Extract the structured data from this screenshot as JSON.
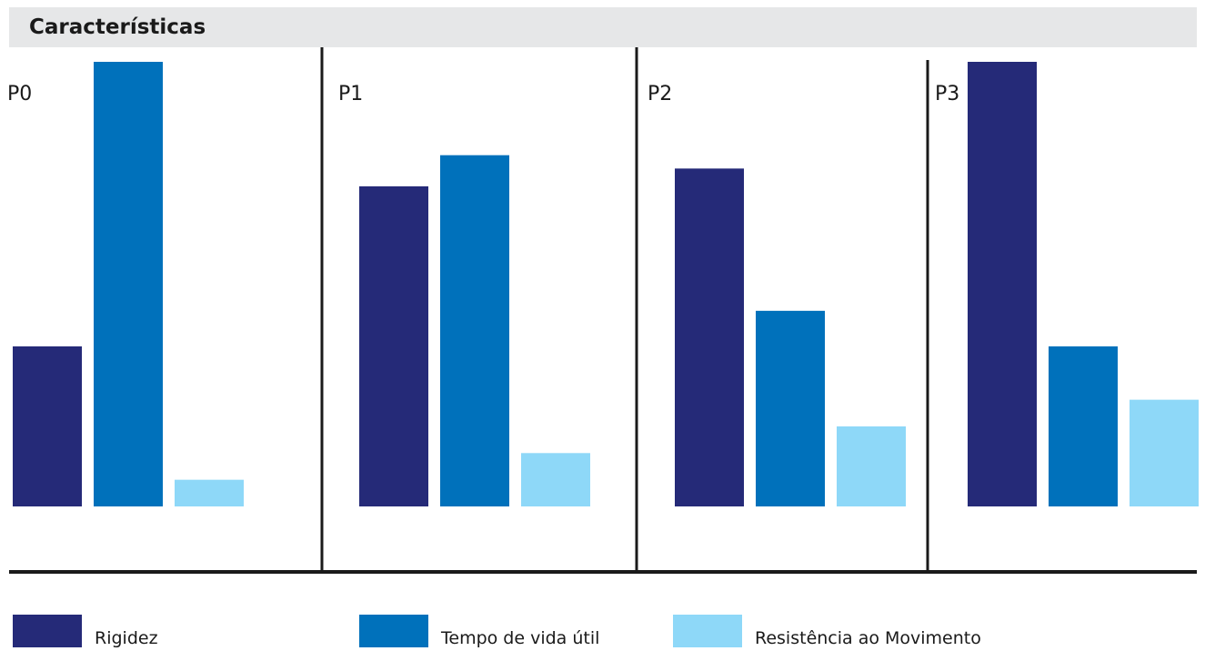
{
  "chart_data": {
    "type": "bar",
    "title": "Características",
    "categories": [
      "P0",
      "P1",
      "P2",
      "P3"
    ],
    "series": [
      {
        "name": "Rigidez",
        "values": [
          36,
          72,
          76,
          100
        ],
        "color": "#252a78"
      },
      {
        "name": "Tempo de vida útil",
        "values": [
          100,
          79,
          44,
          36
        ],
        "color": "#0071bb"
      },
      {
        "name": "Resistência ao Movimento",
        "values": [
          6,
          12,
          18,
          24
        ],
        "color": "#8ed8f8"
      }
    ],
    "ylim": [
      0,
      100
    ],
    "grid": false,
    "legend": "bottom"
  }
}
